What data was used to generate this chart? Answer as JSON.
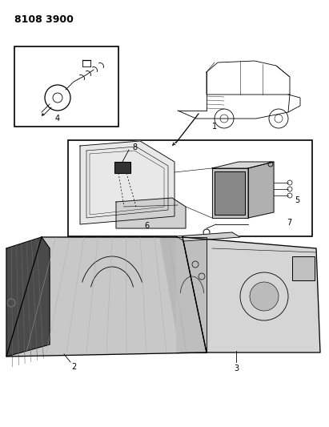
{
  "title_code": "8108 3900",
  "background_color": "#ffffff",
  "line_color": "#000000",
  "label_fontsize": 7,
  "figsize": [
    4.11,
    5.33
  ],
  "dpi": 100
}
